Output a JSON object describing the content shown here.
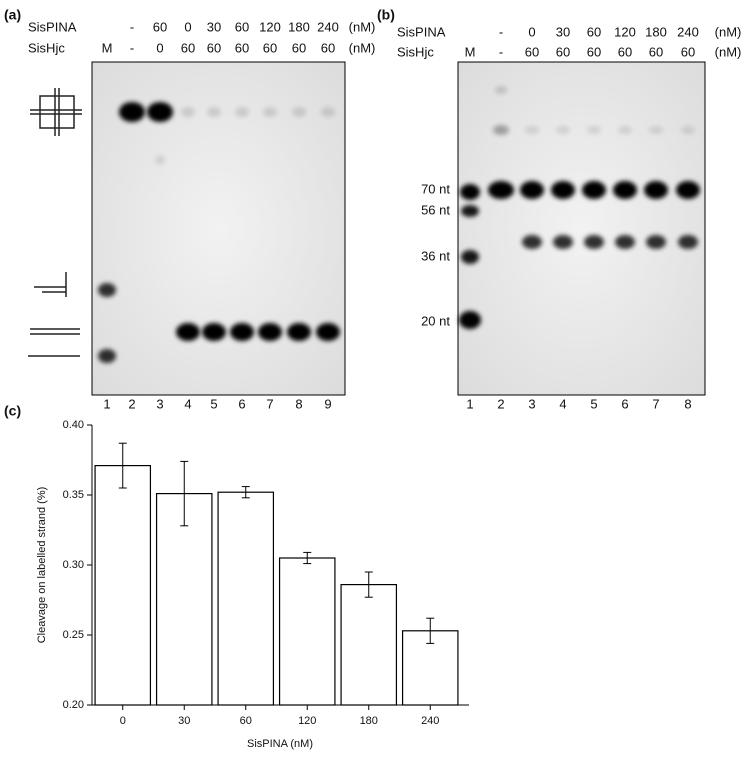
{
  "panel_a": {
    "label": "(a)",
    "sispina_label": "SisPINA",
    "sishjc_label": "SisHjc",
    "unit": "(nM)",
    "sispina": [
      "-",
      "60",
      "0",
      "30",
      "60",
      "120",
      "180",
      "240"
    ],
    "sishjc": [
      "M",
      "-",
      "0",
      "60",
      "60",
      "60",
      "60",
      "60",
      "60"
    ],
    "lanes": [
      "1",
      "2",
      "3",
      "4",
      "5",
      "6",
      "7",
      "8",
      "9"
    ]
  },
  "panel_b": {
    "label": "(b)",
    "sispina_label": "SisPINA",
    "sishjc_label": "SisHjc",
    "unit": "(nM)",
    "sispina": [
      "-",
      "0",
      "30",
      "60",
      "120",
      "180",
      "240"
    ],
    "sishjc": [
      "M",
      "-",
      "60",
      "60",
      "60",
      "60",
      "60",
      "60"
    ],
    "lanes": [
      "1",
      "2",
      "3",
      "4",
      "5",
      "6",
      "7",
      "8"
    ],
    "sizes": [
      "70 nt",
      "56 nt",
      "36 nt",
      "20 nt"
    ]
  },
  "chart_data": {
    "type": "bar",
    "label": "(c)",
    "xlabel": "SisPINA (nM)",
    "ylabel": "Cleavage on labelled strand (%)",
    "categories": [
      "0",
      "30",
      "60",
      "120",
      "180",
      "240"
    ],
    "values": [
      0.371,
      0.351,
      0.352,
      0.305,
      0.286,
      0.253
    ],
    "errors": [
      0.016,
      0.023,
      0.004,
      0.004,
      0.009,
      0.009
    ],
    "color": "#ffffff",
    "edgecolor": "#000000",
    "ylim": [
      0.2,
      0.4
    ],
    "yticks": [
      {
        "value": 0.2,
        "label": "0.20"
      },
      {
        "value": 0.25,
        "label": "0.25"
      },
      {
        "value": 0.3,
        "label": "0.30"
      },
      {
        "value": 0.35,
        "label": "0.35"
      },
      {
        "value": 0.4,
        "label": "0.40"
      }
    ]
  }
}
